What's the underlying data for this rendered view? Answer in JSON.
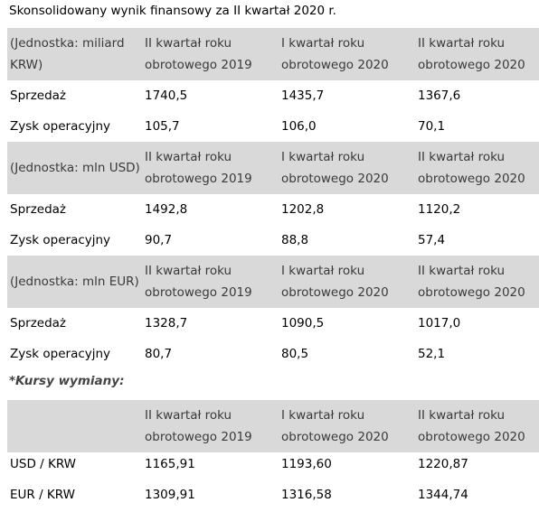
{
  "title": "Skonsolidowany wynik finansowy za II kwartał 2020 r.",
  "period_headers": {
    "q2_2019_line1": "II kwartał roku",
    "q2_2019_line2": "obrotowego 2019",
    "q1_2020_line1": "I kwartał roku",
    "q1_2020_line2": "obrotowego 2020",
    "q2_2020_line1": "II kwartał roku",
    "q2_2020_line2": "obrotowego 2020"
  },
  "krw": {
    "unit_line1": "(Jednostka: miliard",
    "unit_line2": "KRW)",
    "rows": [
      {
        "label": "Sprzedaż",
        "v1": "1740,5",
        "v2": "1435,7",
        "v3": "1367,6"
      },
      {
        "label": "Zysk operacyjny",
        "v1": "105,7",
        "v2": "106,0",
        "v3": "70,1"
      }
    ]
  },
  "usd": {
    "unit": "(Jednostka: mln USD)",
    "rows": [
      {
        "label": "Sprzedaż",
        "v1": "1492,8",
        "v2": "1202,8",
        "v3": "1120,2"
      },
      {
        "label": "Zysk operacyjny",
        "v1": "90,7",
        "v2": "88,8",
        "v3": "57,4"
      }
    ]
  },
  "eur": {
    "unit": "(Jednostka: mln EUR)",
    "rows": [
      {
        "label": "Sprzedaż",
        "v1": "1328,7",
        "v2": "1090,5",
        "v3": "1017,0"
      },
      {
        "label": "Zysk operacyjny",
        "v1": "80,7",
        "v2": "80,5",
        "v3": "52,1"
      }
    ]
  },
  "fx": {
    "note": "*Kursy wymiany:",
    "rows": [
      {
        "label": "USD / KRW",
        "v1": "1165,91",
        "v2": "1193,60",
        "v3": "1220,87"
      },
      {
        "label": "EUR / KRW",
        "v1": "1309,91",
        "v2": "1316,58",
        "v3": "1344,74"
      }
    ]
  }
}
